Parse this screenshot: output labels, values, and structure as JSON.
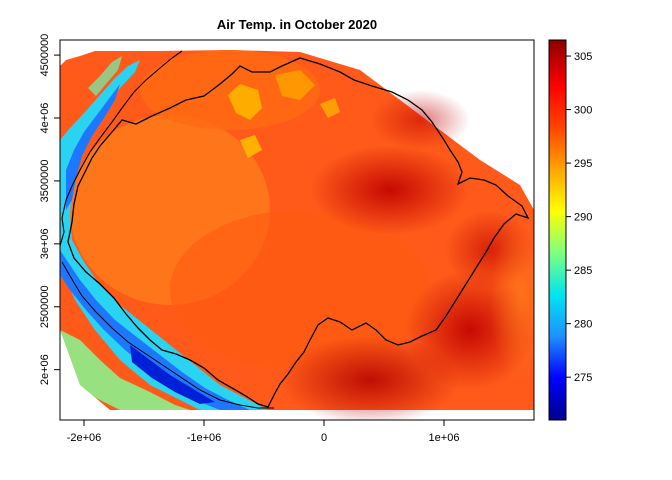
{
  "map": {
    "title": "Air Temp. in October 2020",
    "x_ticks": [
      {
        "value": -2000000,
        "label": "-2e+06"
      },
      {
        "value": -1000000,
        "label": "-1e+06"
      },
      {
        "value": 0,
        "label": "0"
      },
      {
        "value": 1000000,
        "label": "1e+06"
      }
    ],
    "y_ticks": [
      {
        "value": 2000000,
        "label": "2e+06"
      },
      {
        "value": 2500000,
        "label": "2500000"
      },
      {
        "value": 3000000,
        "label": "3e+06"
      },
      {
        "value": 3500000,
        "label": "3500000"
      },
      {
        "value": 4000000,
        "label": "4e+06"
      },
      {
        "value": 4500000,
        "label": "4500000"
      }
    ],
    "x_range": [
      -2200000,
      1750000
    ],
    "y_range": [
      1600000,
      4620000
    ],
    "legend": {
      "range": [
        271,
        306.5
      ],
      "ticks": [
        {
          "value": 275,
          "label": "275"
        },
        {
          "value": 280,
          "label": "280"
        },
        {
          "value": 285,
          "label": "285"
        },
        {
          "value": 290,
          "label": "290"
        },
        {
          "value": 295,
          "label": "295"
        },
        {
          "value": 300,
          "label": "300"
        },
        {
          "value": 305,
          "label": "305"
        }
      ],
      "colors": [
        "#00008b",
        "#0000ff",
        "#1e90ff",
        "#00e5ee",
        "#7fff7f",
        "#ffff00",
        "#ffa500",
        "#ff4500",
        "#ff0000",
        "#8b0000"
      ]
    }
  }
}
